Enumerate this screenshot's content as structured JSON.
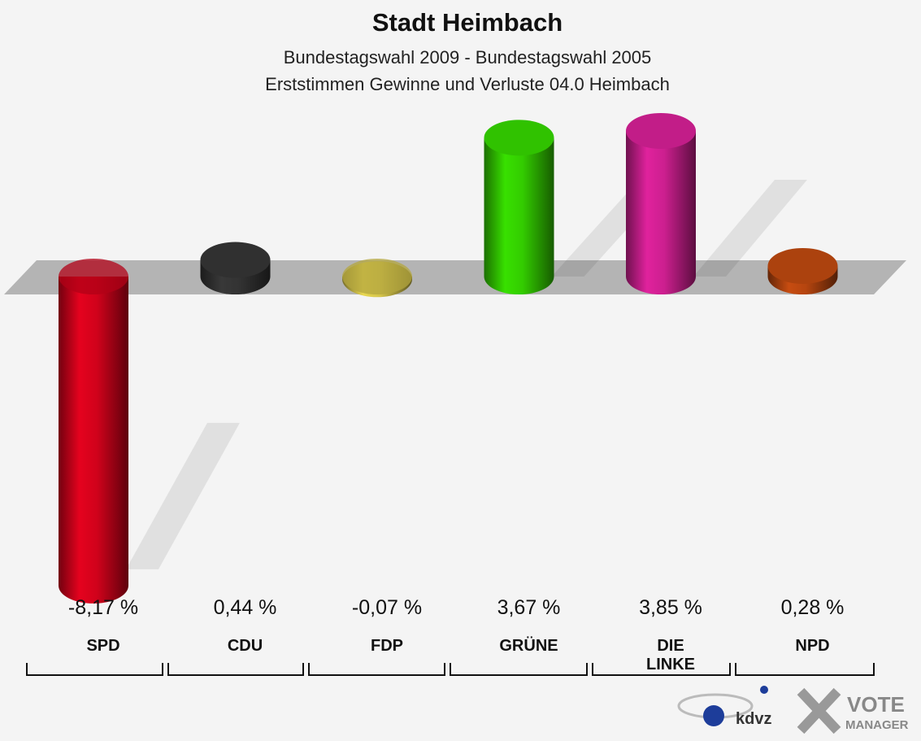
{
  "chart_data": {
    "type": "bar3d",
    "title": "Stadt Heimbach",
    "subtitle": [
      "Bundestagswahl 2009 - Bundestagswahl 2005",
      "Erststimmen Gewinne und Verluste 04.0 Heimbach"
    ],
    "categories": [
      "SPD",
      "CDU",
      "FDP",
      "GRÜNE",
      "DIE LINKE",
      "NPD"
    ],
    "values": [
      -8.17,
      0.44,
      -0.07,
      3.67,
      3.85,
      0.28
    ],
    "value_labels": [
      "-8,17 %",
      "0,44 %",
      "-0,07 %",
      "3,67 %",
      "3,85 %",
      "0,28 %"
    ],
    "colors": [
      "#d0021b",
      "#333333",
      "#d4c44a",
      "#33cc00",
      "#cc1f8f",
      "#b5450f"
    ]
  },
  "logo": {
    "kdvz": "kdvz",
    "vote": "VOTE",
    "manager": "MANAGER"
  }
}
